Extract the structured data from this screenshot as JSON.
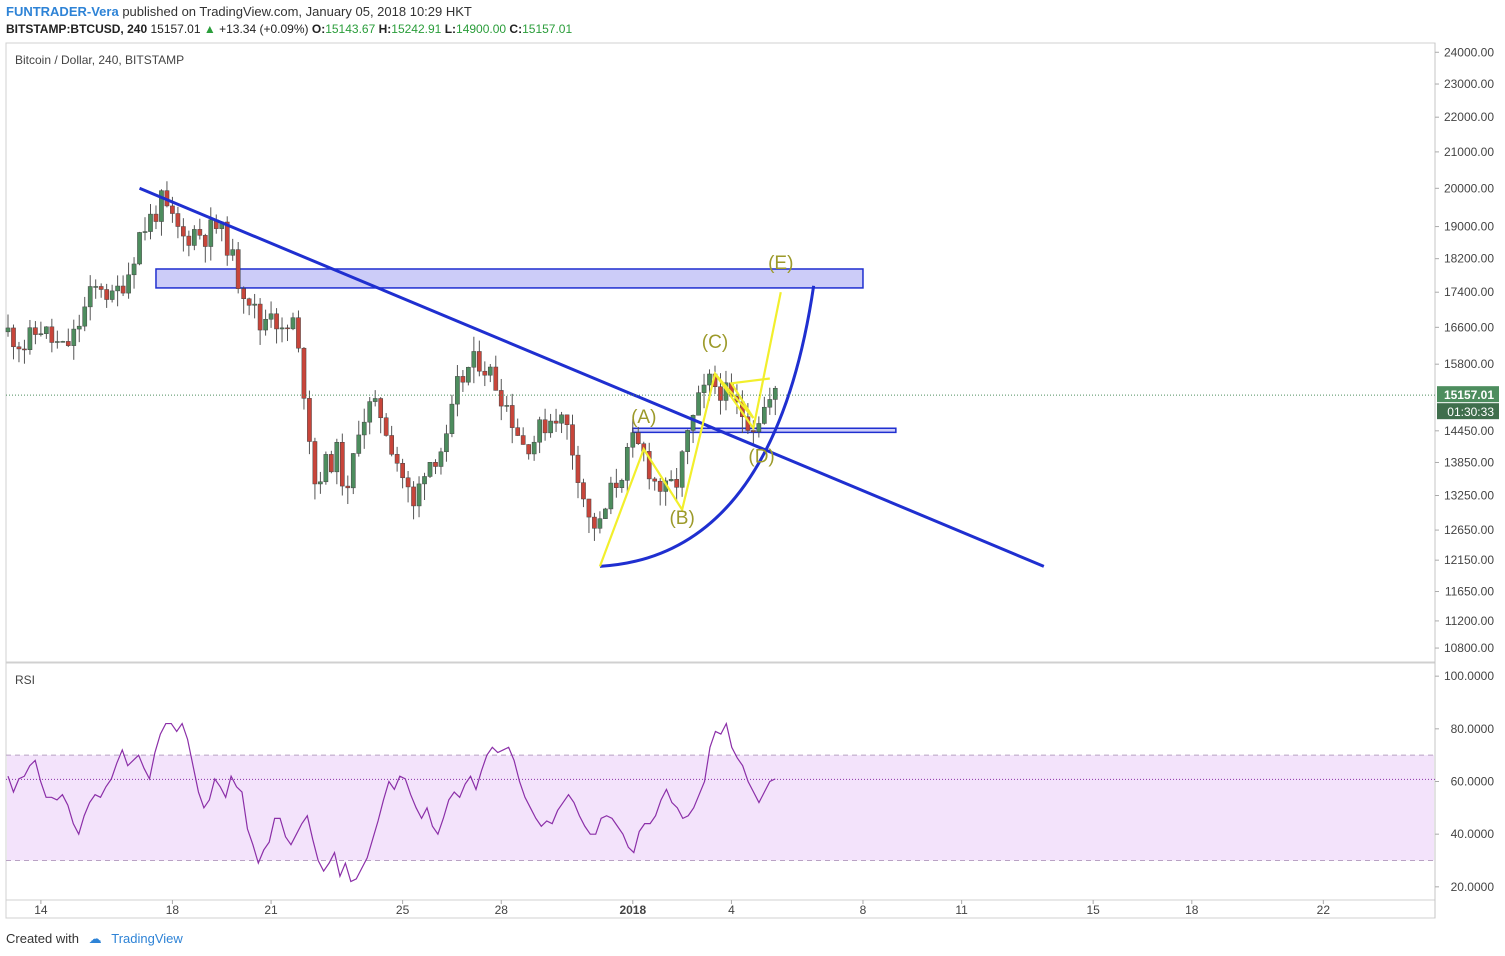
{
  "header": {
    "author": "FUNTRADER-Vera",
    "published": "published on TradingView.com, January 05, 2018 10:29 HKT",
    "symbol": "BITSTAMP:BTCUSD, 240",
    "last": "15157.01",
    "change": "+13.34 (+0.09%)",
    "open_label": "O:",
    "open": "15143.67",
    "high_label": "H:",
    "high": "15242.91",
    "low_label": "L:",
    "low": "14900.00",
    "close_label": "C:",
    "close": "15157.01"
  },
  "footer": {
    "created_with": "Created with",
    "brand": "TradingView"
  },
  "colors": {
    "up": "#4d8d5e",
    "down": "#c8453a",
    "trendline": "#1f2fd0",
    "wave": "#f2ef2c",
    "zone": "#8f8ff0",
    "rsi": "#8b2fa8"
  },
  "chart_data": [
    {
      "type": "candlestick",
      "title": "Bitcoin / Dollar, 240, BITSTAMP",
      "y_scale": "log",
      "ylim": [
        10600,
        24300
      ],
      "y_ticks": [
        "24000.00",
        "23000.00",
        "22000.00",
        "21000.00",
        "20000.00",
        "19000.00",
        "18200.00",
        "17400.00",
        "16600.00",
        "15800.00",
        "14450.00",
        "13850.00",
        "13250.00",
        "12650.00",
        "12150.00",
        "11650.00",
        "11200.00",
        "10800.00"
      ],
      "x_range_days": [
        "2017-12-13",
        "2018-01-25"
      ],
      "x_ticks": [
        "14",
        "18",
        "21",
        "25",
        "28",
        "2018",
        "4",
        "8",
        "11",
        "15",
        "18",
        "22"
      ],
      "last_price_label": "15157.01",
      "countdown_label": "01:30:33",
      "price_path": [
        [
          "2017-12-13 00:00",
          16500
        ],
        [
          "2017-12-13 12:00",
          16200
        ],
        [
          "2017-12-14 00:00",
          16600
        ],
        [
          "2017-12-14 08:00",
          16300
        ],
        [
          "2017-12-14 16:00",
          16100
        ],
        [
          "2017-12-15 00:00",
          16400
        ],
        [
          "2017-12-15 12:00",
          17300
        ],
        [
          "2017-12-15 20:00",
          17600
        ],
        [
          "2017-12-16 04:00",
          17200
        ],
        [
          "2017-12-16 16:00",
          17900
        ],
        [
          "2017-12-17 00:00",
          18800
        ],
        [
          "2017-12-17 08:00",
          19200
        ],
        [
          "2017-12-17 16:00",
          19600
        ],
        [
          "2017-12-18 00:00",
          19100
        ],
        [
          "2017-12-18 08:00",
          18700
        ],
        [
          "2017-12-18 16:00",
          18900
        ],
        [
          "2017-12-19 00:00",
          18800
        ],
        [
          "2017-12-19 08:00",
          19000
        ],
        [
          "2017-12-19 16:00",
          18600
        ],
        [
          "2017-12-20 00:00",
          17700
        ],
        [
          "2017-12-20 08:00",
          17300
        ],
        [
          "2017-12-20 16:00",
          16600
        ],
        [
          "2017-12-21 00:00",
          17100
        ],
        [
          "2017-12-21 08:00",
          16400
        ],
        [
          "2017-12-21 16:00",
          16700
        ],
        [
          "2017-12-22 00:00",
          15300
        ],
        [
          "2017-12-22 08:00",
          13500
        ],
        [
          "2017-12-22 16:00",
          13800
        ],
        [
          "2017-12-23 00:00",
          14000
        ],
        [
          "2017-12-23 08:00",
          13200
        ],
        [
          "2017-12-23 16:00",
          14600
        ],
        [
          "2017-12-24 00:00",
          14900
        ],
        [
          "2017-12-24 08:00",
          14800
        ],
        [
          "2017-12-24 16:00",
          14200
        ],
        [
          "2017-12-25 00:00",
          13600
        ],
        [
          "2017-12-25 08:00",
          13000
        ],
        [
          "2017-12-25 16:00",
          13800
        ],
        [
          "2017-12-26 00:00",
          14000
        ],
        [
          "2017-12-26 08:00",
          14200
        ],
        [
          "2017-12-26 16:00",
          15300
        ],
        [
          "2017-12-27 00:00",
          15700
        ],
        [
          "2017-12-27 08:00",
          15900
        ],
        [
          "2017-12-27 16:00",
          15600
        ],
        [
          "2017-12-28 00:00",
          15200
        ],
        [
          "2017-12-28 08:00",
          14700
        ],
        [
          "2017-12-28 16:00",
          14200
        ],
        [
          "2017-12-29 00:00",
          14300
        ],
        [
          "2017-12-29 08:00",
          14600
        ],
        [
          "2017-12-29 16:00",
          14800
        ],
        [
          "2017-12-30 00:00",
          14500
        ],
        [
          "2017-12-30 08:00",
          13700
        ],
        [
          "2017-12-30 16:00",
          12800
        ],
        [
          "2017-12-31 00:00",
          12700
        ],
        [
          "2017-12-31 08:00",
          13300
        ],
        [
          "2017-12-31 16:00",
          13700
        ],
        [
          "2018-01-01 00:00",
          14200
        ],
        [
          "2018-01-01 08:00",
          14000
        ],
        [
          "2018-01-01 16:00",
          13500
        ],
        [
          "2018-01-02 00:00",
          13300
        ],
        [
          "2018-01-02 08:00",
          13500
        ],
        [
          "2018-01-02 16:00",
          14300
        ],
        [
          "2018-01-03 00:00",
          15000
        ],
        [
          "2018-01-03 08:00",
          15400
        ],
        [
          "2018-01-03 16:00",
          15300
        ],
        [
          "2018-01-04 00:00",
          15000
        ],
        [
          "2018-01-04 08:00",
          14800
        ],
        [
          "2018-01-04 16:00",
          14600
        ],
        [
          "2018-01-05 00:00",
          14900
        ],
        [
          "2018-01-05 08:00",
          15157
        ]
      ],
      "annotations": {
        "resistance_zone": {
          "from": "2017-12-17 12:00",
          "to": "2018-01-08 00:00",
          "low": 17500,
          "high": 17950
        },
        "support_zone": {
          "from": "2018-01-01 00:00",
          "to": "2018-01-09 00:00",
          "low": 14420,
          "high": 14500
        },
        "trendline": [
          [
            "2017-12-17 00:00",
            20000
          ],
          [
            "2018-01-13 12:00",
            12050
          ]
        ],
        "arc": [
          [
            "2017-12-31 00:00",
            12050
          ],
          [
            "2018-01-06 12:00",
            17550
          ]
        ],
        "wave_path": [
          [
            "2017-12-31 00:00",
            12050
          ],
          [
            "2018-01-01 08:00",
            14100
          ],
          [
            "2018-01-02 12:00",
            13000
          ],
          [
            "2018-01-03 12:00",
            15600
          ],
          [
            "2018-01-04 16:00",
            14500
          ],
          [
            "2018-01-05 12:00",
            17400
          ]
        ],
        "cross_path": [
          [
            "2018-01-03 12:00",
            15600
          ],
          [
            "2018-01-04 16:00",
            14700
          ],
          [
            "2018-01-04 00:00",
            15400
          ],
          [
            "2018-01-05 04:00",
            15500
          ]
        ],
        "wave_labels": [
          {
            "text": "(A)",
            "x": "2018-01-01 08:00",
            "y": 14600
          },
          {
            "text": "(B)",
            "x": "2018-01-02 12:00",
            "y": 12750
          },
          {
            "text": "(C)",
            "x": "2018-01-03 12:00",
            "y": 16150
          },
          {
            "text": "(D)",
            "x": "2018-01-04 22:00",
            "y": 13850
          },
          {
            "text": "(E)",
            "x": "2018-01-05 12:00",
            "y": 17950
          }
        ]
      }
    },
    {
      "type": "line",
      "title": "RSI",
      "ylim": [
        15,
        105
      ],
      "y_ticks": [
        "100.0000",
        "80.0000",
        "60.0000",
        "40.0000",
        "20.0000"
      ],
      "band": [
        30,
        70
      ],
      "current_level": 60.8,
      "values": [
        62,
        56,
        61,
        62,
        66,
        68,
        60,
        54,
        54,
        53,
        55,
        51,
        44,
        40,
        47,
        52,
        55,
        54,
        58,
        61,
        67,
        72,
        66,
        68,
        70,
        65,
        61,
        71,
        78,
        82,
        82,
        79,
        82,
        76,
        66,
        56,
        50,
        53,
        61,
        58,
        54,
        62,
        58,
        56,
        42,
        36,
        29,
        34,
        37,
        46,
        46,
        39,
        36,
        40,
        44,
        47,
        38,
        30,
        26,
        29,
        33,
        24,
        29,
        22,
        23,
        27,
        31,
        38,
        45,
        53,
        60,
        57,
        62,
        61,
        55,
        50,
        46,
        50,
        43,
        40,
        46,
        53,
        56,
        54,
        59,
        62,
        57,
        64,
        70,
        73,
        71,
        72,
        73,
        68,
        60,
        54,
        50,
        46,
        43,
        45,
        44,
        49,
        52,
        55,
        52,
        47,
        43,
        40,
        40,
        46,
        47,
        46,
        43,
        40,
        35,
        33,
        41,
        44,
        44,
        47,
        53,
        57,
        52,
        50,
        46,
        47,
        50,
        55,
        60,
        73,
        79,
        78,
        82,
        73,
        69,
        66,
        60,
        56,
        52,
        56,
        60,
        61
      ]
    }
  ]
}
